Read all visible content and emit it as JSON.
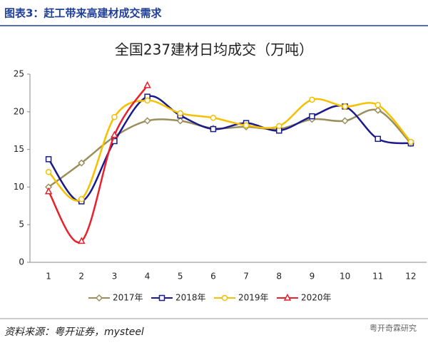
{
  "header": {
    "title": "图表3：赶工带来高建材成交需求"
  },
  "chart_data": {
    "type": "line",
    "title": "全国237建材日均成交（万吨）",
    "categories": [
      "1",
      "2",
      "3",
      "4",
      "5",
      "6",
      "7",
      "8",
      "9",
      "10",
      "11",
      "12"
    ],
    "series": [
      {
        "name": "2017年",
        "color": "#9a8f5c",
        "marker": "diamond",
        "values": [
          10.0,
          13.2,
          16.7,
          18.8,
          18.8,
          17.8,
          18.0,
          17.7,
          19.0,
          18.8,
          20.2,
          15.8
        ]
      },
      {
        "name": "2018年",
        "color": "#1a1a8c",
        "marker": "square",
        "values": [
          13.7,
          8.1,
          16.1,
          22.0,
          19.5,
          17.7,
          18.5,
          17.5,
          19.4,
          20.7,
          16.4,
          15.8
        ]
      },
      {
        "name": "2019年",
        "color": "#f5c000",
        "marker": "circle",
        "values": [
          12.0,
          8.4,
          19.3,
          21.5,
          19.8,
          19.2,
          18.2,
          18.1,
          21.6,
          20.7,
          20.9,
          16.0
        ]
      },
      {
        "name": "2020年",
        "color": "#e8212b",
        "marker": "triangle",
        "values": [
          9.4,
          2.8,
          16.9,
          23.5,
          null,
          null,
          null,
          null,
          null,
          null,
          null,
          null
        ]
      }
    ],
    "ylim": [
      0,
      25
    ],
    "yticks": [
      0,
      5,
      10,
      15,
      20,
      25
    ],
    "smooth": true,
    "legend": "bottom"
  },
  "footer": {
    "source": "资料来源：粤开证券，mysteel",
    "watermark": "粤开奇霖研究"
  }
}
